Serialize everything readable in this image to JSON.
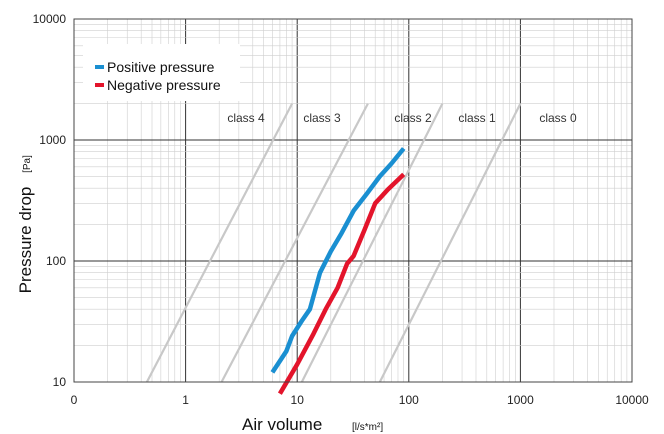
{
  "chart_data": {
    "type": "line",
    "xscale": "log",
    "yscale": "log",
    "xlim": [
      0.1,
      10000
    ],
    "ylim": [
      10,
      10000
    ],
    "grid": true,
    "legend_position": "top-left",
    "x_tick_labels": [
      "0",
      "1",
      "10",
      "100",
      "1000",
      "10000"
    ],
    "y_tick_labels": [
      "10",
      "100",
      "1000",
      "10000"
    ],
    "xlabel": "Air volume",
    "xunit": "[l/s*m²]",
    "ylabel": "Pressure drop",
    "yunit": "[Pa]",
    "series": [
      {
        "name": "Positive pressure",
        "color": "#1a8fd1",
        "x": [
          6,
          8,
          9,
          11,
          13,
          16,
          20,
          25,
          32,
          42,
          55,
          70,
          90
        ],
        "y": [
          12,
          18,
          24,
          32,
          40,
          80,
          120,
          170,
          260,
          360,
          500,
          640,
          850
        ]
      },
      {
        "name": "Negative pressure",
        "color": "#e3142b",
        "x": [
          7,
          10,
          14,
          18,
          23,
          28,
          32,
          40,
          50,
          65,
          90
        ],
        "y": [
          8,
          14,
          25,
          40,
          60,
          95,
          110,
          180,
          300,
          390,
          520
        ]
      }
    ],
    "class_lines": [
      {
        "label": "class 4",
        "x_at_10": 0.45,
        "x_at_2000": 9
      },
      {
        "label": "class 3",
        "x_at_10": 2.1,
        "x_at_2000": 43
      },
      {
        "label": "class 2",
        "x_at_10": 11,
        "x_at_2000": 200
      },
      {
        "label": "class 1",
        "x_at_10": 55,
        "x_at_2000": 1000
      }
    ],
    "class_labels": [
      "class 4",
      "class 3",
      "class 2",
      "class 1",
      "class 0"
    ],
    "class_line_color": "#c8c8c8"
  }
}
